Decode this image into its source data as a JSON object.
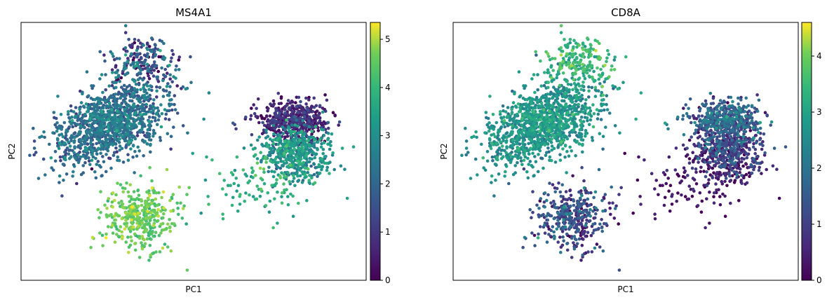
{
  "chart_data": [
    {
      "type": "scatter",
      "title": "MS4A1",
      "xlabel": "PC1",
      "ylabel": "PC2",
      "x_ticks_shown": false,
      "y_ticks_shown": false,
      "colormap": "viridis",
      "colorbar": {
        "range": [
          0,
          5.35
        ],
        "ticks": [
          "0",
          "1",
          "2",
          "3",
          "4",
          "5"
        ]
      },
      "clusters": [
        {
          "name": "cluster-upper-left",
          "n": 1200,
          "center": [
            0.26,
            0.61
          ],
          "spread": [
            0.1,
            0.06
          ],
          "rot": 0.75,
          "mean_value": 2.1,
          "sd_value": 0.55
        },
        {
          "name": "cluster-upper-left-tip",
          "n": 200,
          "center": [
            0.36,
            0.85
          ],
          "spread": [
            0.05,
            0.05
          ],
          "rot": 0.0,
          "mean_value": 1.4,
          "sd_value": 0.9
        },
        {
          "name": "cluster-bottom",
          "n": 380,
          "center": [
            0.35,
            0.24
          ],
          "spread": [
            0.055,
            0.065
          ],
          "rot": 0.0,
          "mean_value": 4.5,
          "sd_value": 0.3
        },
        {
          "name": "cluster-right-top",
          "n": 500,
          "center": [
            0.79,
            0.62
          ],
          "spread": [
            0.05,
            0.035
          ],
          "rot": 0.0,
          "mean_value": 0.5,
          "sd_value": 0.5
        },
        {
          "name": "cluster-right-bottom",
          "n": 450,
          "center": [
            0.8,
            0.5
          ],
          "spread": [
            0.05,
            0.05
          ],
          "rot": 0.0,
          "mean_value": 2.9,
          "sd_value": 0.5
        },
        {
          "name": "cluster-right-spray",
          "n": 130,
          "center": [
            0.7,
            0.38
          ],
          "spread": [
            0.08,
            0.07
          ],
          "rot": 0.0,
          "mean_value": 3.8,
          "sd_value": 0.4
        }
      ]
    },
    {
      "type": "scatter",
      "title": "CD8A",
      "xlabel": "PC1",
      "ylabel": "PC2",
      "x_ticks_shown": false,
      "y_ticks_shown": false,
      "colormap": "viridis",
      "colorbar": {
        "range": [
          0,
          4.6
        ],
        "ticks": [
          "0",
          "1",
          "2",
          "3",
          "4"
        ]
      },
      "clusters": [
        {
          "name": "cluster-upper-left",
          "n": 1200,
          "center": [
            0.26,
            0.61
          ],
          "spread": [
            0.1,
            0.06
          ],
          "rot": 0.75,
          "mean_value": 2.6,
          "sd_value": 0.4
        },
        {
          "name": "cluster-upper-left-tip",
          "n": 200,
          "center": [
            0.37,
            0.85
          ],
          "spread": [
            0.05,
            0.05
          ],
          "rot": 0.0,
          "mean_value": 3.4,
          "sd_value": 0.35
        },
        {
          "name": "cluster-bottom",
          "n": 380,
          "center": [
            0.35,
            0.24
          ],
          "spread": [
            0.055,
            0.065
          ],
          "rot": 0.0,
          "mean_value": 1.1,
          "sd_value": 0.6
        },
        {
          "name": "cluster-right-top",
          "n": 500,
          "center": [
            0.79,
            0.62
          ],
          "spread": [
            0.05,
            0.035
          ],
          "rot": 0.0,
          "mean_value": 1.4,
          "sd_value": 0.6
        },
        {
          "name": "cluster-right-bottom",
          "n": 450,
          "center": [
            0.8,
            0.5
          ],
          "spread": [
            0.05,
            0.05
          ],
          "rot": 0.0,
          "mean_value": 0.7,
          "sd_value": 0.6
        },
        {
          "name": "cluster-right-spray",
          "n": 130,
          "center": [
            0.7,
            0.38
          ],
          "spread": [
            0.08,
            0.07
          ],
          "rot": 0.0,
          "mean_value": 0.3,
          "sd_value": 0.3
        }
      ]
    }
  ]
}
